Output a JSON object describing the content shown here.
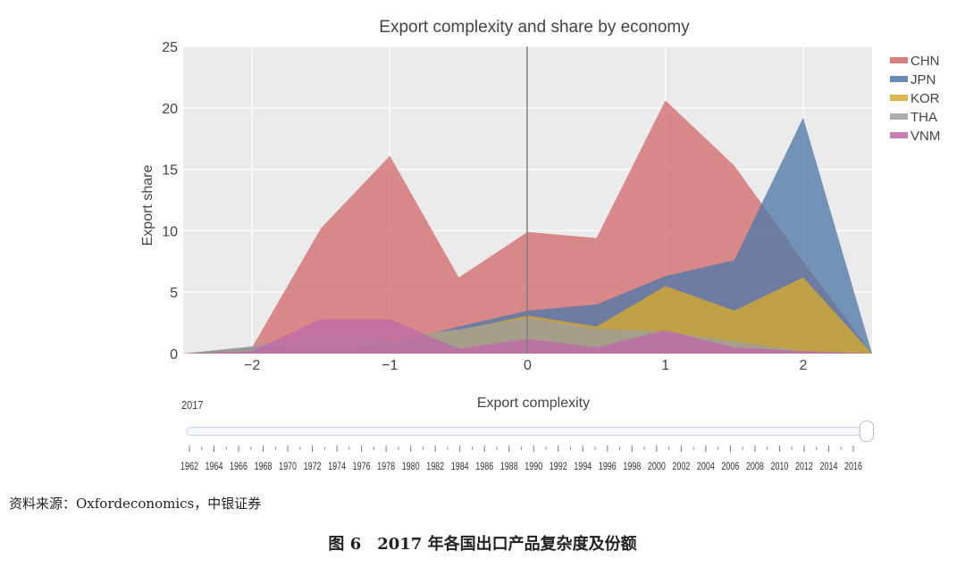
{
  "chart_data": {
    "type": "area",
    "title": "Export complexity and share by economy",
    "xlabel": "Export complexity",
    "ylabel": "Export share",
    "xlim": [
      -2.5,
      2.5
    ],
    "ylim": [
      0,
      25
    ],
    "x_ticks": [
      "−2",
      "−1",
      "0",
      "1",
      "2"
    ],
    "x_tick_values": [
      -2,
      -1,
      0,
      1,
      2
    ],
    "y_ticks": [
      0,
      5,
      10,
      15,
      20,
      25
    ],
    "reference_line_x": 0,
    "grid": true,
    "legend_position": "right",
    "x": [
      -2.5,
      -2.0,
      -1.5,
      -1.0,
      -0.5,
      0.0,
      0.5,
      1.0,
      1.5,
      2.0,
      2.5
    ],
    "series": [
      {
        "name": "CHN",
        "color": "#d26b6b",
        "values": [
          0,
          0.5,
          10.2,
          16.1,
          6.2,
          9.9,
          9.4,
          20.6,
          15.3,
          7.5,
          0
        ]
      },
      {
        "name": "JPN",
        "color": "#4f78a8",
        "values": [
          0,
          0.5,
          0.4,
          0.8,
          2.2,
          3.5,
          4.0,
          6.3,
          7.6,
          19.2,
          0
        ]
      },
      {
        "name": "KOR",
        "color": "#d7ab2e",
        "values": [
          0,
          0.3,
          0.5,
          1.4,
          1.9,
          3.1,
          2.2,
          5.5,
          3.5,
          6.2,
          0
        ]
      },
      {
        "name": "THA",
        "color": "#9e9e9e",
        "values": [
          0,
          0.6,
          1.6,
          1.2,
          2.0,
          2.9,
          2.0,
          1.8,
          1.0,
          0.2,
          0
        ]
      },
      {
        "name": "VNM",
        "color": "#c068a8",
        "values": [
          0,
          0.2,
          2.8,
          2.8,
          0.4,
          1.2,
          0.5,
          1.9,
          0.5,
          0.2,
          0
        ]
      }
    ]
  },
  "slider": {
    "current_year": "2017",
    "years": [
      "1962",
      "1964",
      "1966",
      "1968",
      "1970",
      "1972",
      "1974",
      "1976",
      "1978",
      "1980",
      "1982",
      "1984",
      "1986",
      "1988",
      "1990",
      "1992",
      "1994",
      "1996",
      "1998",
      "2000",
      "2002",
      "2004",
      "2006",
      "2008",
      "2010",
      "2012",
      "2014",
      "2016"
    ]
  },
  "footer": {
    "source": "资料来源：Oxfordeconomics，中银证券",
    "caption": "图 6　2017 年各国出口产品复杂度及份额"
  }
}
